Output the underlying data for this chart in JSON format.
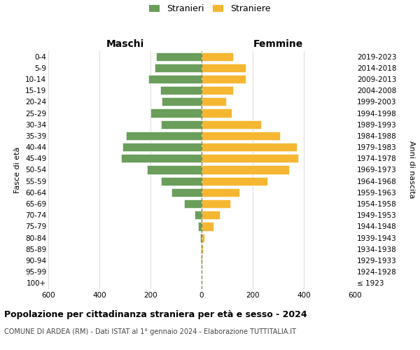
{
  "age_groups": [
    "100+",
    "95-99",
    "90-94",
    "85-89",
    "80-84",
    "75-79",
    "70-74",
    "65-69",
    "60-64",
    "55-59",
    "50-54",
    "45-49",
    "40-44",
    "35-39",
    "30-34",
    "25-29",
    "20-24",
    "15-19",
    "10-14",
    "5-9",
    "0-4"
  ],
  "birth_years": [
    "≤ 1923",
    "1924-1928",
    "1929-1933",
    "1934-1938",
    "1939-1943",
    "1944-1948",
    "1949-1953",
    "1954-1958",
    "1959-1963",
    "1964-1968",
    "1969-1973",
    "1974-1978",
    "1979-1983",
    "1984-1988",
    "1989-1993",
    "1994-1998",
    "1999-2003",
    "2004-2008",
    "2009-2013",
    "2014-2018",
    "2019-2023"
  ],
  "maschi": [
    1,
    0,
    2,
    3,
    5,
    15,
    28,
    68,
    118,
    160,
    215,
    315,
    310,
    295,
    160,
    200,
    155,
    162,
    208,
    183,
    178
  ],
  "femmine": [
    1,
    1,
    3,
    5,
    10,
    47,
    72,
    112,
    148,
    258,
    343,
    378,
    372,
    308,
    232,
    117,
    97,
    122,
    172,
    172,
    122
  ],
  "color_maschi": "#6a9e5a",
  "color_femmine": "#f5b731",
  "dashed_color": "#888866",
  "title": "Popolazione per cittadinanza straniera per età e sesso - 2024",
  "subtitle": "COMUNE DI ARDEA (RM) - Dati ISTAT al 1° gennaio 2024 - Elaborazione TUTTITALIA.IT",
  "legend_maschi": "Stranieri",
  "legend_femmine": "Straniere",
  "label_maschi": "Maschi",
  "label_femmine": "Femmine",
  "ylabel_left": "Fasce di età",
  "ylabel_right": "Anni di nascita",
  "xlim": 600,
  "bg_color": "#ffffff",
  "grid_color": "#cccccc",
  "tick_fontsize": 7.5,
  "header_fontsize": 10,
  "ylabel_fontsize": 8,
  "title_fontsize": 9,
  "subtitle_fontsize": 7,
  "legend_fontsize": 9
}
